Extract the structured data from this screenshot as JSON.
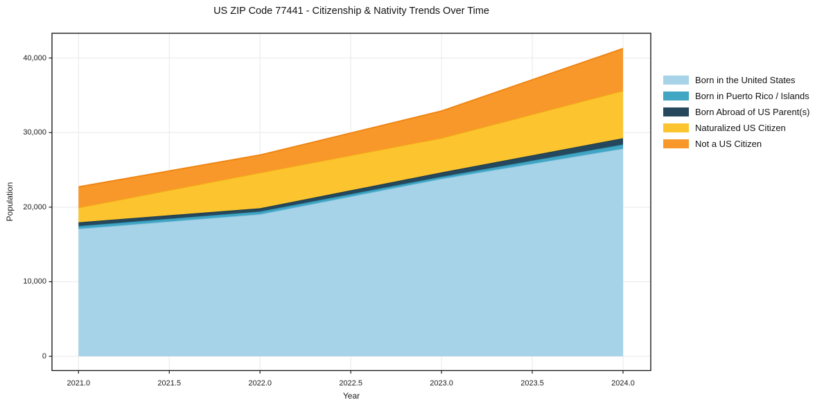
{
  "chart_data": {
    "type": "area",
    "stacked": true,
    "title": "US ZIP Code 77441 - Citizenship & Nativity Trends Over Time",
    "xlabel": "Year",
    "ylabel": "Population",
    "x": [
      2021,
      2022,
      2023,
      2024
    ],
    "series": [
      {
        "name": "Born in the United States",
        "fill": "#A7D3E8",
        "edge": "#8CC6E0",
        "values": [
          17100,
          19050,
          23800,
          27850
        ]
      },
      {
        "name": "Born in Puerto Rico / Islands",
        "fill": "#41A6C4",
        "edge": "#2E94B3",
        "values": [
          370,
          370,
          280,
          560
        ]
      },
      {
        "name": "Born Abroad of US Parent(s)",
        "fill": "#26485C",
        "edge": "#1C3A4C",
        "values": [
          500,
          440,
          590,
          840
        ]
      },
      {
        "name": "Naturalized US Citizen",
        "fill": "#FCC530",
        "edge": "#F2B314",
        "values": [
          1950,
          4750,
          4590,
          6350
        ]
      },
      {
        "name": "Not a US Citizen",
        "fill": "#F8982B",
        "edge": "#EF8512",
        "values": [
          2800,
          2380,
          3630,
          5670
        ]
      }
    ],
    "totals": [
      22720,
      26990,
      32890,
      41270
    ],
    "xlim": [
      2020.85,
      2024.15
    ],
    "ylim": [
      -1900,
      43250
    ],
    "xticks": {
      "values": [
        2021.0,
        2021.5,
        2022.0,
        2022.5,
        2023.0,
        2023.5,
        2024.0
      ],
      "labels": [
        "2021.0",
        "2021.5",
        "2022.0",
        "2022.5",
        "2023.0",
        "2023.5",
        "2024.0"
      ]
    },
    "yticks": {
      "values": [
        0,
        10000,
        20000,
        30000,
        40000
      ],
      "labels": [
        "0",
        "10,000",
        "20,000",
        "30,000",
        "40,000"
      ]
    },
    "grid": true,
    "grid_color": "#E8E8E8",
    "frame_color": "#1A1A1A",
    "legend_position": "right-outside"
  }
}
